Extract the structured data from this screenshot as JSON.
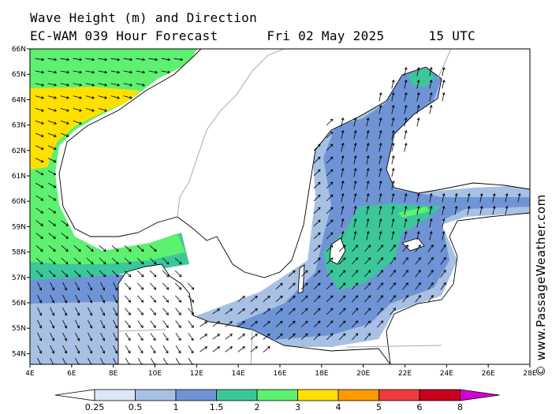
{
  "header": {
    "title": "Wave Height (m) and Direction",
    "model": "EC-WAM 039 Hour Forecast",
    "date": "Fri 02 May 2025",
    "time": "15 UTC"
  },
  "credit": "© www.PassageWeather.com",
  "map": {
    "lon_ticks": [
      "4E",
      "6E",
      "8E",
      "10E",
      "12E",
      "14E",
      "16E",
      "18E",
      "20E",
      "22E",
      "24E",
      "26E",
      "28E"
    ],
    "lat_ticks": [
      "66N",
      "65N",
      "64N",
      "63N",
      "62N",
      "61N",
      "60N",
      "59N",
      "58N",
      "57N",
      "56N",
      "55N",
      "54N"
    ],
    "lon_range": [
      4,
      28
    ],
    "lat_range": [
      53.7,
      66
    ]
  },
  "legend": {
    "labels": [
      "0.25",
      "0.5",
      "1",
      "1.5",
      "2",
      "3",
      "4",
      "5",
      "6",
      "8"
    ],
    "colors": [
      "#ffffff",
      "#dce6f5",
      "#a8c0e4",
      "#6e94d6",
      "#3cc79a",
      "#5ef070",
      "#ffe000",
      "#ff9a00",
      "#f03c3c",
      "#c8001e",
      "#d400d4"
    ]
  },
  "colors": {
    "land": "#ffffff",
    "coast": "#000000",
    "border": "#aaaaaa"
  }
}
